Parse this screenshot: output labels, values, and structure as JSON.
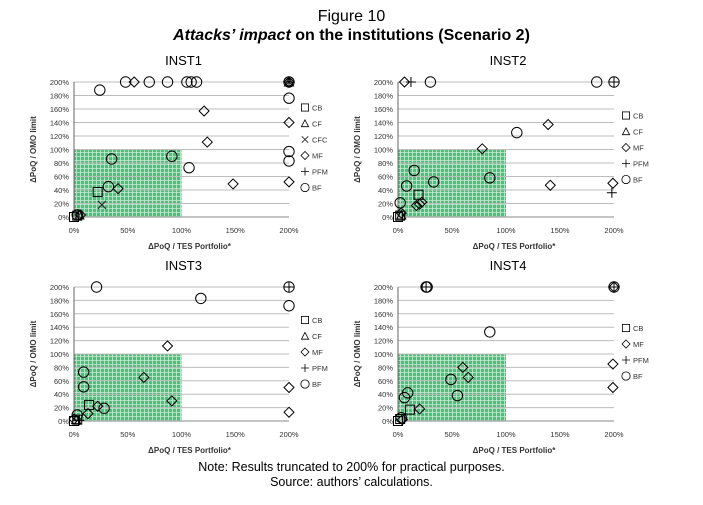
{
  "figure": {
    "label": "Figure 10",
    "subtitle_emph": "Attacks’ impact",
    "subtitle_rest": " on the institutions (Scenario 2)",
    "note": "Note: Results truncated to 200% for practical purposes.",
    "source": "Source: authors’ calculations."
  },
  "colors": {
    "safe_zone": "#4cbf7a",
    "grid": "#bdbdbd",
    "marker": "#000000"
  },
  "chart_data": [
    {
      "type": "scatter",
      "title": "INST1",
      "xlabel": "ΔPoQ / TES Portfolio*",
      "ylabel": "ΔPoQ / OMO limit",
      "xlim": [
        0,
        200
      ],
      "ylim": [
        0,
        200
      ],
      "xticks": [
        "0%",
        "50%",
        "100%",
        "150%",
        "200%"
      ],
      "yticks": [
        "0%",
        "20%",
        "40%",
        "60%",
        "80%",
        "100%",
        "120%",
        "140%",
        "160%",
        "180%",
        "200%"
      ],
      "shaded_region": {
        "x": [
          0,
          100
        ],
        "y": [
          0,
          100
        ]
      },
      "grid": "horizontal",
      "legend": "right",
      "series": [
        {
          "name": "CB",
          "marker": "square",
          "points": [
            [
              22,
              37
            ],
            [
              0,
              0
            ],
            [
              3,
              2
            ]
          ]
        },
        {
          "name": "CF",
          "marker": "triangle",
          "points": [
            [
              5,
              3
            ],
            [
              200,
              200
            ]
          ]
        },
        {
          "name": "CFC",
          "marker": "x",
          "points": [
            [
              26,
              18
            ],
            [
              200,
              200
            ],
            [
              4,
              2
            ]
          ]
        },
        {
          "name": "MF",
          "marker": "diamond",
          "points": [
            [
              56,
              200
            ],
            [
              121,
              157
            ],
            [
              124,
              111
            ],
            [
              200,
              140
            ],
            [
              200,
              52
            ],
            [
              148,
              49
            ],
            [
              41,
              42
            ],
            [
              200,
              200
            ],
            [
              6,
              3
            ]
          ]
        },
        {
          "name": "PFM",
          "marker": "plus",
          "points": [
            [
              200,
              200
            ]
          ]
        },
        {
          "name": "BF",
          "marker": "circle",
          "points": [
            [
              48,
              200
            ],
            [
              70,
              200
            ],
            [
              87,
              200
            ],
            [
              105,
              200
            ],
            [
              109,
              200
            ],
            [
              114,
              200
            ],
            [
              24,
              188
            ],
            [
              200,
              200
            ],
            [
              200,
              176
            ],
            [
              200,
              97
            ],
            [
              200,
              83
            ],
            [
              107,
              73
            ],
            [
              32,
              45
            ],
            [
              35,
              86
            ],
            [
              91,
              90
            ],
            [
              3,
              3
            ]
          ]
        }
      ]
    },
    {
      "type": "scatter",
      "title": "INST2",
      "xlabel": "ΔPoQ / TES Portfolio*",
      "ylabel": "ΔPoQ / OMO limit",
      "xlim": [
        0,
        200
      ],
      "ylim": [
        0,
        200
      ],
      "xticks": [
        "0%",
        "50%",
        "100%",
        "150%",
        "200%"
      ],
      "yticks": [
        "0%",
        "20%",
        "40%",
        "60%",
        "80%",
        "100%",
        "120%",
        "140%",
        "160%",
        "180%",
        "200%"
      ],
      "shaded_region": {
        "x": [
          0,
          100
        ],
        "y": [
          0,
          100
        ]
      },
      "grid": "horizontal",
      "legend": "right",
      "series": [
        {
          "name": "CB",
          "marker": "square",
          "points": [
            [
              19,
              33
            ],
            [
              0,
              0
            ],
            [
              2,
              2
            ]
          ]
        },
        {
          "name": "CF",
          "marker": "triangle",
          "points": [
            [
              3,
              3
            ]
          ]
        },
        {
          "name": "MF",
          "marker": "diamond",
          "points": [
            [
              6,
              200
            ],
            [
              139,
              137
            ],
            [
              78,
              101
            ],
            [
              141,
              47
            ],
            [
              199,
              50
            ],
            [
              22,
              22
            ],
            [
              20,
              19
            ],
            [
              17,
              17
            ],
            [
              3,
              6
            ]
          ]
        },
        {
          "name": "PFM",
          "marker": "plus",
          "points": [
            [
              12,
              200
            ],
            [
              200,
              200
            ],
            [
              198,
              36
            ]
          ]
        },
        {
          "name": "BF",
          "marker": "circle",
          "points": [
            [
              30,
              200
            ],
            [
              184,
              200
            ],
            [
              200,
              200
            ],
            [
              110,
              125
            ],
            [
              15,
              69
            ],
            [
              8,
              46
            ],
            [
              33,
              52
            ],
            [
              85,
              58
            ],
            [
              2,
              21
            ]
          ]
        }
      ]
    },
    {
      "type": "scatter",
      "title": "INST3",
      "xlabel": "ΔPoQ / TES Portfolio*",
      "ylabel": "ΔPoQ / OMO limit",
      "xlim": [
        0,
        200
      ],
      "ylim": [
        0,
        200
      ],
      "xticks": [
        "0%",
        "50%",
        "100%",
        "150%",
        "200%"
      ],
      "yticks": [
        "0%",
        "20%",
        "40%",
        "60%",
        "80%",
        "100%",
        "120%",
        "140%",
        "160%",
        "180%",
        "200%"
      ],
      "shaded_region": {
        "x": [
          0,
          100
        ],
        "y": [
          0,
          100
        ]
      },
      "grid": "horizontal",
      "legend": "right",
      "series": [
        {
          "name": "CB",
          "marker": "square",
          "points": [
            [
              14,
              24
            ],
            [
              0,
              0
            ],
            [
              3,
              2
            ]
          ]
        },
        {
          "name": "CF",
          "marker": "triangle",
          "points": [
            [
              2,
              2
            ]
          ]
        },
        {
          "name": "MF",
          "marker": "diamond",
          "points": [
            [
              87,
              112
            ],
            [
              65,
              65
            ],
            [
              91,
              30
            ],
            [
              200,
              50
            ],
            [
              200,
              13
            ],
            [
              22,
              22
            ],
            [
              13,
              11
            ],
            [
              0,
              3
            ]
          ]
        },
        {
          "name": "PFM",
          "marker": "plus",
          "points": [
            [
              200,
              200
            ],
            [
              5,
              1
            ]
          ]
        },
        {
          "name": "BF",
          "marker": "circle",
          "points": [
            [
              21,
              200
            ],
            [
              118,
              183
            ],
            [
              200,
              172
            ],
            [
              200,
              200
            ],
            [
              9,
              73
            ],
            [
              9,
              51
            ],
            [
              28,
              19
            ],
            [
              3,
              9
            ]
          ]
        }
      ]
    },
    {
      "type": "scatter",
      "title": "INST4",
      "xlabel": "ΔPoQ / TES Portfolio*",
      "ylabel": "ΔPoQ / OMO limit",
      "xlim": [
        0,
        200
      ],
      "ylim": [
        0,
        200
      ],
      "xticks": [
        "0%",
        "50%",
        "100%",
        "150%",
        "200%"
      ],
      "yticks": [
        "0%",
        "20%",
        "40%",
        "60%",
        "80%",
        "100%",
        "120%",
        "140%",
        "160%",
        "180%",
        "200%"
      ],
      "shaded_region": {
        "x": [
          0,
          100
        ],
        "y": [
          0,
          100
        ]
      },
      "grid": "horizontal",
      "legend": "right",
      "series": [
        {
          "name": "CB",
          "marker": "square",
          "points": [
            [
              11,
              17
            ],
            [
              0,
              0
            ],
            [
              2,
              3
            ]
          ]
        },
        {
          "name": "MF",
          "marker": "diamond",
          "points": [
            [
              60,
              80
            ],
            [
              65,
              65
            ],
            [
              20,
              18
            ],
            [
              199,
              85
            ],
            [
              199,
              50
            ],
            [
              200,
              200
            ],
            [
              4,
              2
            ]
          ]
        },
        {
          "name": "PFM",
          "marker": "plus",
          "points": [
            [
              200,
              200
            ],
            [
              26,
              200
            ]
          ]
        },
        {
          "name": "BF",
          "marker": "circle",
          "points": [
            [
              26,
              200
            ],
            [
              27,
              200
            ],
            [
              85,
              133
            ],
            [
              49,
              62
            ],
            [
              55,
              38
            ],
            [
              9,
              42
            ],
            [
              6,
              35
            ],
            [
              200,
              200
            ],
            [
              3,
              5
            ]
          ]
        }
      ]
    }
  ]
}
